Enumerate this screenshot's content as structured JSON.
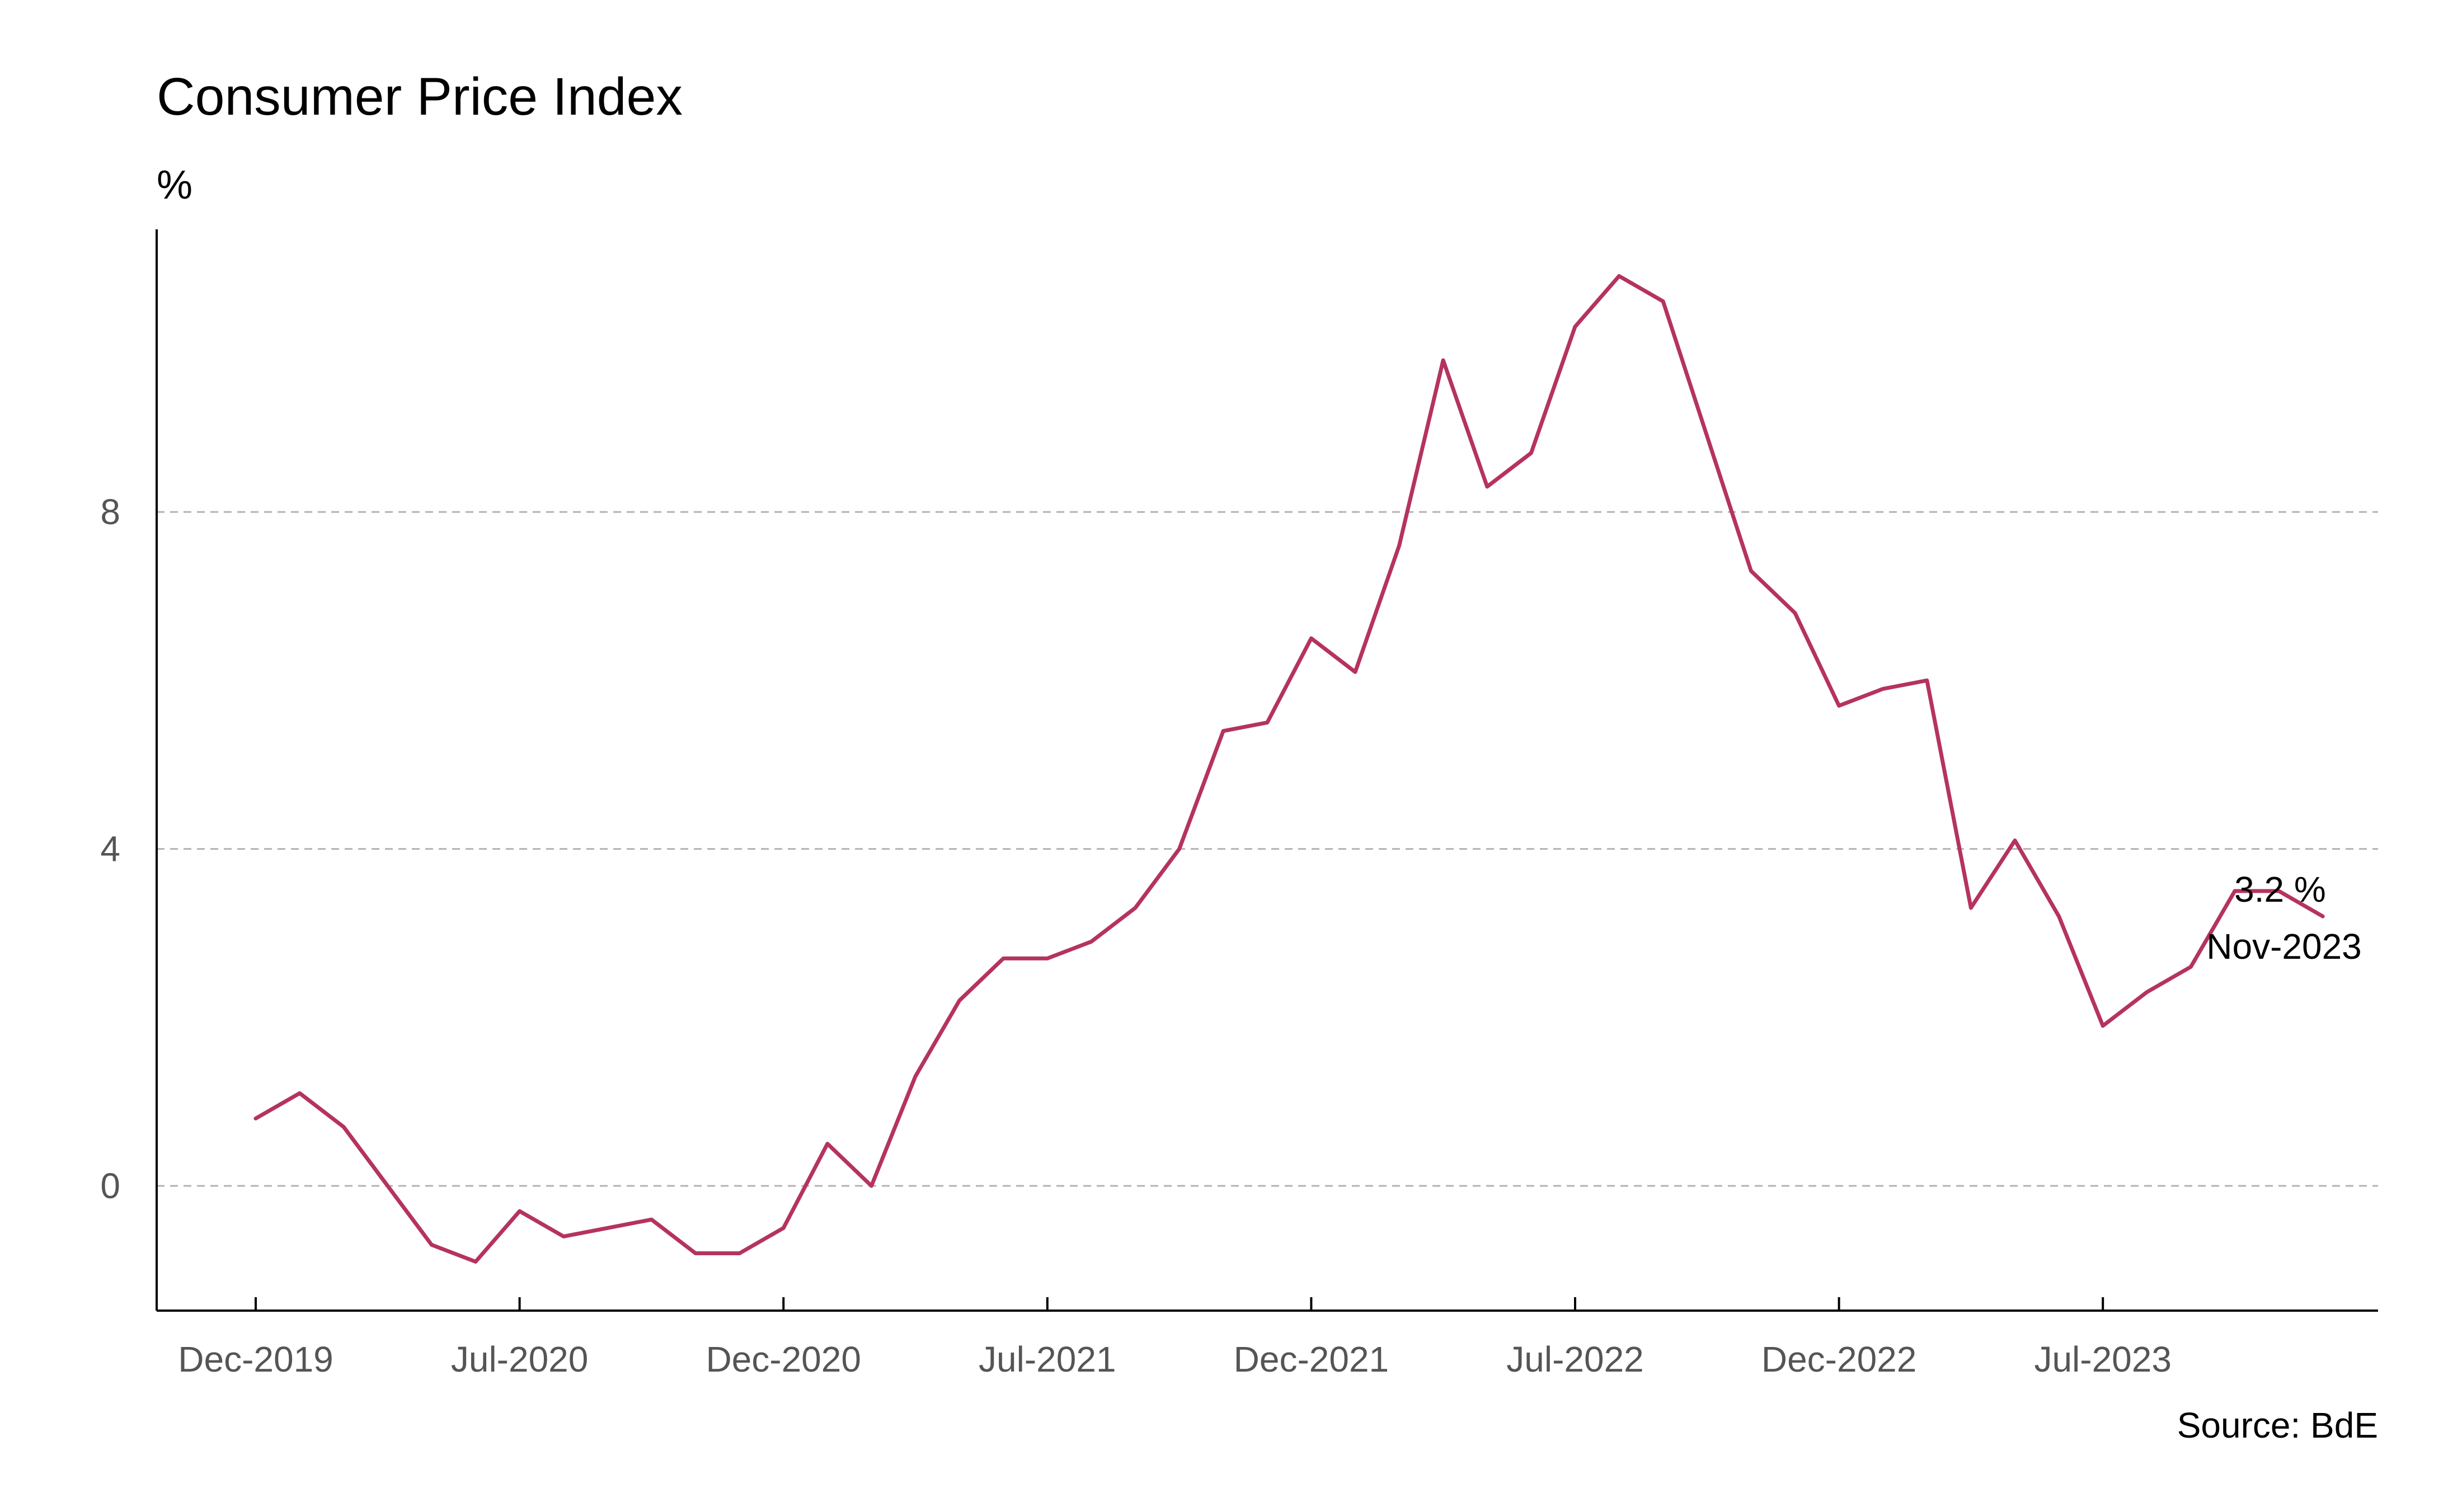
{
  "chart_data": {
    "type": "line",
    "title": "Consumer Price Index",
    "ylabel": "%",
    "xlabel": "",
    "source": "Source: BdE",
    "ylim": [
      -1.5,
      11.5
    ],
    "yticks": [
      0,
      4,
      8
    ],
    "grid": "horizontal dashed",
    "line_color": "#b5335f",
    "x_tick_labels": [
      "Dec-2019",
      "Jul-2020",
      "Dec-2020",
      "Jul-2021",
      "Dec-2021",
      "Jul-2022",
      "Dec-2022",
      "Jul-2023"
    ],
    "x_tick_index": [
      0,
      6,
      12,
      18,
      24,
      30,
      36,
      42
    ],
    "series": [
      {
        "x": [
          "Dec-2019",
          "Jan-2020",
          "Feb-2020",
          "Mar-2020",
          "Apr-2020",
          "May-2020",
          "Jun-2020",
          "Jul-2020",
          "Aug-2020",
          "Sep-2020",
          "Oct-2020",
          "Nov-2020",
          "Dec-2020",
          "Jan-2021",
          "Feb-2021",
          "Mar-2021",
          "Apr-2021",
          "May-2021",
          "Jun-2021",
          "Jul-2021",
          "Aug-2021",
          "Sep-2021",
          "Oct-2021",
          "Nov-2021",
          "Dec-2021",
          "Jan-2022",
          "Feb-2022",
          "Mar-2022",
          "Apr-2022",
          "May-2022",
          "Jun-2022",
          "Jul-2022",
          "Aug-2022",
          "Sep-2022",
          "Oct-2022",
          "Nov-2022",
          "Dec-2022",
          "Jan-2023",
          "Feb-2023",
          "Mar-2023",
          "Apr-2023",
          "May-2023",
          "Jun-2023",
          "Jul-2023",
          "Aug-2023",
          "Sep-2023",
          "Oct-2023",
          "Nov-2023"
        ],
        "values": [
          0.8,
          1.1,
          0.7,
          0.0,
          -0.7,
          -0.9,
          -0.3,
          -0.6,
          -0.5,
          -0.4,
          -0.8,
          -0.8,
          -0.5,
          0.5,
          0.0,
          1.3,
          2.2,
          2.7,
          2.7,
          2.9,
          3.3,
          4.0,
          5.4,
          5.5,
          6.5,
          6.1,
          7.6,
          9.8,
          8.3,
          8.7,
          10.2,
          10.8,
          10.5,
          8.9,
          7.3,
          6.8,
          5.7,
          5.9,
          6.0,
          3.3,
          4.1,
          3.2,
          1.9,
          2.3,
          2.6,
          3.5,
          3.5,
          3.2
        ]
      }
    ],
    "annotation": {
      "value_label": "3.2 %",
      "date_label": "Nov-2023"
    }
  }
}
